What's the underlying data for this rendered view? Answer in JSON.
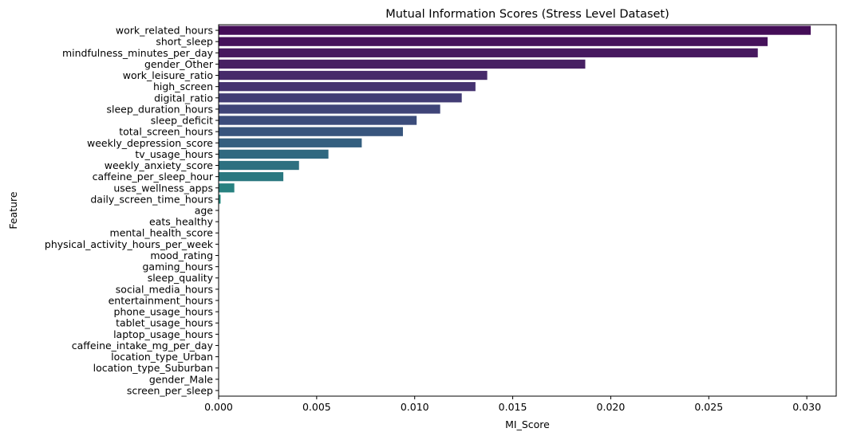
{
  "chart_data": {
    "type": "bar",
    "orientation": "horizontal",
    "title": "Mutual Information Scores (Stress Level Dataset)",
    "xlabel": "MI_Score",
    "ylabel": "Feature",
    "xlim": [
      0,
      0.0315
    ],
    "xticks": [
      "0.000",
      "0.005",
      "0.010",
      "0.015",
      "0.020",
      "0.025",
      "0.030"
    ],
    "xtick_values": [
      0,
      0.005,
      0.01,
      0.015,
      0.02,
      0.025,
      0.03
    ],
    "grid": false,
    "palette": "viridis",
    "categories": [
      "work_related_hours",
      "short_sleep",
      "mindfulness_minutes_per_day",
      "gender_Other",
      "work_leisure_ratio",
      "high_screen",
      "digital_ratio",
      "sleep_duration_hours",
      "sleep_deficit",
      "total_screen_hours",
      "weekly_depression_score",
      "tv_usage_hours",
      "weekly_anxiety_score",
      "caffeine_per_sleep_hour",
      "uses_wellness_apps",
      "daily_screen_time_hours",
      "age",
      "eats_healthy",
      "mental_health_score",
      "physical_activity_hours_per_week",
      "mood_rating",
      "gaming_hours",
      "sleep_quality",
      "social_media_hours",
      "entertainment_hours",
      "phone_usage_hours",
      "tablet_usage_hours",
      "laptop_usage_hours",
      "caffeine_intake_mg_per_day",
      "location_type_Urban",
      "location_type_Suburban",
      "gender_Male",
      "screen_per_sleep"
    ],
    "values": [
      0.0302,
      0.028,
      0.0275,
      0.0187,
      0.0137,
      0.0131,
      0.0124,
      0.0113,
      0.0101,
      0.0094,
      0.0073,
      0.0056,
      0.0041,
      0.0033,
      0.0008,
      0.0001,
      0,
      0,
      0,
      0,
      0,
      0,
      0,
      0,
      0,
      0,
      0,
      0,
      0,
      0,
      0,
      0,
      0
    ],
    "colors": [
      "#440d57",
      "#46125b",
      "#47195f",
      "#472063",
      "#462a6a",
      "#453370",
      "#423c75",
      "#3f4478",
      "#3b4c7b",
      "#38557d",
      "#345f7f",
      "#306880",
      "#2d7080",
      "#2a7880",
      "#278180",
      "#248a7f"
    ]
  }
}
